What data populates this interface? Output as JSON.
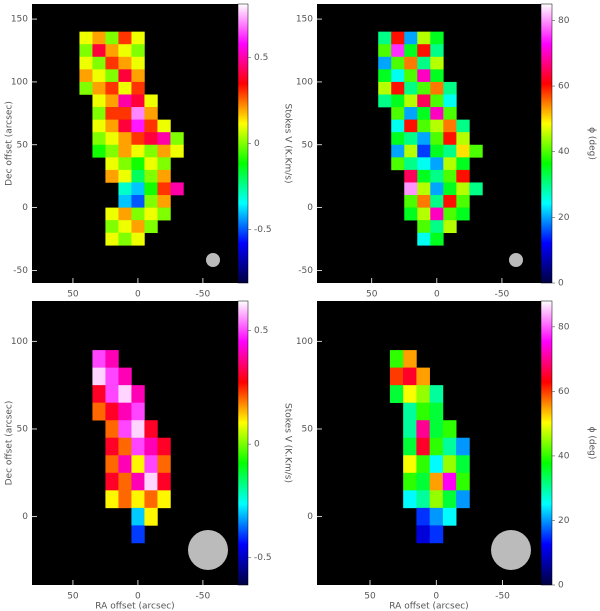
{
  "chart_data": [
    {
      "type": "heatmap",
      "ylabel": "Dec offset (arcsec)",
      "zlabel": "Stokes V (K.Km/s)",
      "xlim": [
        81.5,
        -77
      ],
      "ylim": [
        -60,
        162
      ],
      "xticks": [
        50,
        0,
        -50
      ],
      "yticks": [
        -50,
        0,
        50,
        100,
        150
      ],
      "zlim": [
        -0.81,
        0.81
      ],
      "zticks": [
        -0.5,
        0,
        0.5
      ],
      "colormap": [
        "#000040",
        "#0000ff",
        "#00ffff",
        "#00ff00",
        "#ffff00",
        "#ff0000",
        "#ff00ff",
        "#ffffff"
      ],
      "x": [
        40,
        30,
        20,
        10,
        0,
        -10,
        -20,
        -30
      ],
      "y": [
        135,
        125,
        115,
        105,
        95,
        85,
        75,
        65,
        55,
        45,
        35,
        25,
        15,
        5,
        -5,
        -15,
        -25
      ],
      "z": [
        [
          0.1,
          0.2,
          0.0,
          0.3,
          0.1,
          null,
          null,
          null
        ],
        [
          0.0,
          0.4,
          0.2,
          0.1,
          0.0,
          null,
          null,
          null
        ],
        [
          0.1,
          0.0,
          0.3,
          0.2,
          0.1,
          null,
          null,
          null
        ],
        [
          0.2,
          0.1,
          0.0,
          0.4,
          0.2,
          null,
          null,
          null
        ],
        [
          0.0,
          0.2,
          0.3,
          0.1,
          0.3,
          null,
          null,
          null
        ],
        [
          null,
          0.1,
          0.2,
          0.5,
          0.4,
          0.1,
          null,
          null
        ],
        [
          null,
          0.0,
          0.3,
          0.3,
          0.7,
          0.2,
          null,
          null
        ],
        [
          null,
          0.1,
          0.2,
          0.4,
          0.6,
          0.3,
          0.1,
          null
        ],
        [
          null,
          0.0,
          0.1,
          0.2,
          0.3,
          0.4,
          0.5,
          0.0
        ],
        [
          null,
          -0.1,
          0.0,
          0.2,
          0.1,
          0.0,
          0.2,
          0.1
        ],
        [
          null,
          null,
          0.1,
          0.0,
          -0.1,
          0.1,
          0.0,
          null
        ],
        [
          null,
          null,
          0.2,
          0.1,
          -0.2,
          0.0,
          0.2,
          null
        ],
        [
          null,
          null,
          null,
          -0.3,
          -0.4,
          -0.1,
          0.3,
          0.5
        ],
        [
          null,
          null,
          null,
          -0.4,
          -0.5,
          0.0,
          0.2,
          null
        ],
        [
          null,
          null,
          0.1,
          0.2,
          0.0,
          0.1,
          0.0,
          null
        ],
        [
          null,
          null,
          0.0,
          0.1,
          0.2,
          0.0,
          null,
          null
        ],
        [
          null,
          null,
          0.1,
          0.0,
          0.1,
          null,
          null,
          null
        ]
      ]
    },
    {
      "type": "heatmap",
      "zlabel": "ϕ (deg)",
      "xlim": [
        92,
        -80
      ],
      "ylim": [
        -60,
        162
      ],
      "xticks": [
        50,
        0,
        -50
      ],
      "yticks": [
        -50,
        0,
        50,
        100,
        150
      ],
      "zlim": [
        0,
        85
      ],
      "zticks": [
        0,
        20,
        40,
        60,
        80
      ],
      "colormap": [
        "#000040",
        "#0000ff",
        "#00ffff",
        "#00ff00",
        "#ffff00",
        "#ff0000",
        "#ff00ff",
        "#ffffff"
      ],
      "x": [
        40,
        30,
        20,
        10,
        0,
        -10,
        -20,
        -30
      ],
      "y": [
        135,
        125,
        115,
        105,
        95,
        85,
        75,
        65,
        55,
        45,
        35,
        25,
        15,
        5,
        -5,
        -15,
        -25
      ],
      "z": [
        [
          30,
          60,
          20,
          45,
          35,
          null,
          null,
          null
        ],
        [
          40,
          75,
          35,
          60,
          30,
          null,
          null,
          null
        ],
        [
          20,
          40,
          55,
          30,
          45,
          null,
          null,
          null
        ],
        [
          35,
          25,
          40,
          70,
          35,
          null,
          null,
          null
        ],
        [
          45,
          60,
          30,
          40,
          55,
          30,
          null,
          null
        ],
        [
          30,
          35,
          45,
          65,
          40,
          25,
          null,
          null
        ],
        [
          null,
          40,
          20,
          35,
          70,
          40,
          null,
          null
        ],
        [
          null,
          25,
          60,
          40,
          45,
          55,
          30,
          null
        ],
        [
          null,
          35,
          30,
          20,
          40,
          60,
          45,
          null
        ],
        [
          null,
          20,
          45,
          15,
          35,
          30,
          50,
          40
        ],
        [
          null,
          40,
          30,
          25,
          20,
          45,
          35,
          null
        ],
        [
          null,
          null,
          65,
          35,
          30,
          40,
          60,
          null
        ],
        [
          null,
          null,
          80,
          45,
          20,
          35,
          45,
          30
        ],
        [
          null,
          null,
          40,
          55,
          30,
          60,
          40,
          null
        ],
        [
          null,
          null,
          35,
          45,
          70,
          40,
          35,
          null
        ],
        [
          null,
          null,
          null,
          40,
          30,
          45,
          null,
          null
        ],
        [
          null,
          null,
          null,
          25,
          35,
          null,
          null,
          null
        ]
      ]
    },
    {
      "type": "heatmap",
      "ylabel": "Dec offset (arcsec)",
      "xlabel": "RA offset (arcsec)",
      "zlabel": "Stokes V (K.Km/s)",
      "xlim": [
        81.5,
        -77
      ],
      "ylim": [
        -39,
        123
      ],
      "xticks": [
        50,
        0,
        -50
      ],
      "yticks": [
        0,
        50,
        100
      ],
      "zlim": [
        -0.62,
        0.63
      ],
      "zticks": [
        -0.5,
        0,
        0.5
      ],
      "colormap": [
        "#000040",
        "#0000ff",
        "#00ffff",
        "#00ff00",
        "#ffff00",
        "#ff0000",
        "#ff00ff",
        "#ffffff"
      ],
      "x": [
        30,
        20,
        10,
        0,
        -10,
        -20,
        -30
      ],
      "y": [
        90,
        80,
        70,
        60,
        50,
        40,
        30,
        20,
        10,
        0,
        -10
      ],
      "z": [
        [
          0.5,
          0.4,
          null,
          null,
          null,
          null,
          null
        ],
        [
          0.6,
          0.5,
          0.4,
          null,
          null,
          null,
          null
        ],
        [
          0.3,
          0.5,
          0.6,
          0.4,
          null,
          null,
          null
        ],
        [
          0.2,
          0.3,
          0.4,
          0.5,
          null,
          null,
          null
        ],
        [
          null,
          0.2,
          0.5,
          0.6,
          0.3,
          null,
          null
        ],
        [
          null,
          0.3,
          0.2,
          0.5,
          0.4,
          0.3,
          null
        ],
        [
          null,
          0.2,
          0.4,
          0.1,
          0.5,
          0.2,
          null
        ],
        [
          null,
          0.3,
          0.2,
          0.4,
          0.6,
          0.3,
          null
        ],
        [
          null,
          0.1,
          0.2,
          0.1,
          0.2,
          0.1,
          null
        ],
        [
          null,
          null,
          null,
          -0.3,
          0.1,
          null,
          null
        ],
        [
          null,
          null,
          null,
          -0.4,
          null,
          null,
          null
        ]
      ]
    },
    {
      "type": "heatmap",
      "xlabel": "RA offset (arcsec)",
      "zlabel": "ϕ (deg)",
      "xlim": [
        90,
        -79
      ],
      "ylim": [
        -39,
        123
      ],
      "xticks": [
        50,
        0,
        -50
      ],
      "yticks": [
        0,
        50,
        100
      ],
      "zlim": [
        0,
        88
      ],
      "zticks": [
        0,
        20,
        40,
        60,
        80
      ],
      "colormap": [
        "#000040",
        "#0000ff",
        "#00ffff",
        "#00ff00",
        "#ffff00",
        "#ff0000",
        "#ff00ff",
        "#ffffff"
      ],
      "x": [
        30,
        20,
        10,
        0,
        -10,
        -20,
        -30
      ],
      "y": [
        90,
        80,
        70,
        60,
        50,
        40,
        30,
        20,
        10,
        0,
        -10
      ],
      "z": [
        [
          40,
          55,
          null,
          null,
          null,
          null,
          null
        ],
        [
          60,
          65,
          55,
          null,
          null,
          null,
          null
        ],
        [
          35,
          50,
          45,
          30,
          null,
          null,
          null
        ],
        [
          null,
          30,
          40,
          35,
          null,
          null,
          null
        ],
        [
          null,
          30,
          70,
          35,
          40,
          null,
          null
        ],
        [
          null,
          35,
          65,
          40,
          30,
          20,
          null
        ],
        [
          null,
          50,
          40,
          25,
          45,
          35,
          null
        ],
        [
          null,
          40,
          35,
          55,
          75,
          40,
          null
        ],
        [
          null,
          25,
          30,
          45,
          35,
          20,
          null
        ],
        [
          null,
          null,
          15,
          20,
          25,
          null,
          null
        ],
        [
          null,
          null,
          10,
          15,
          null,
          null,
          null
        ]
      ]
    }
  ]
}
